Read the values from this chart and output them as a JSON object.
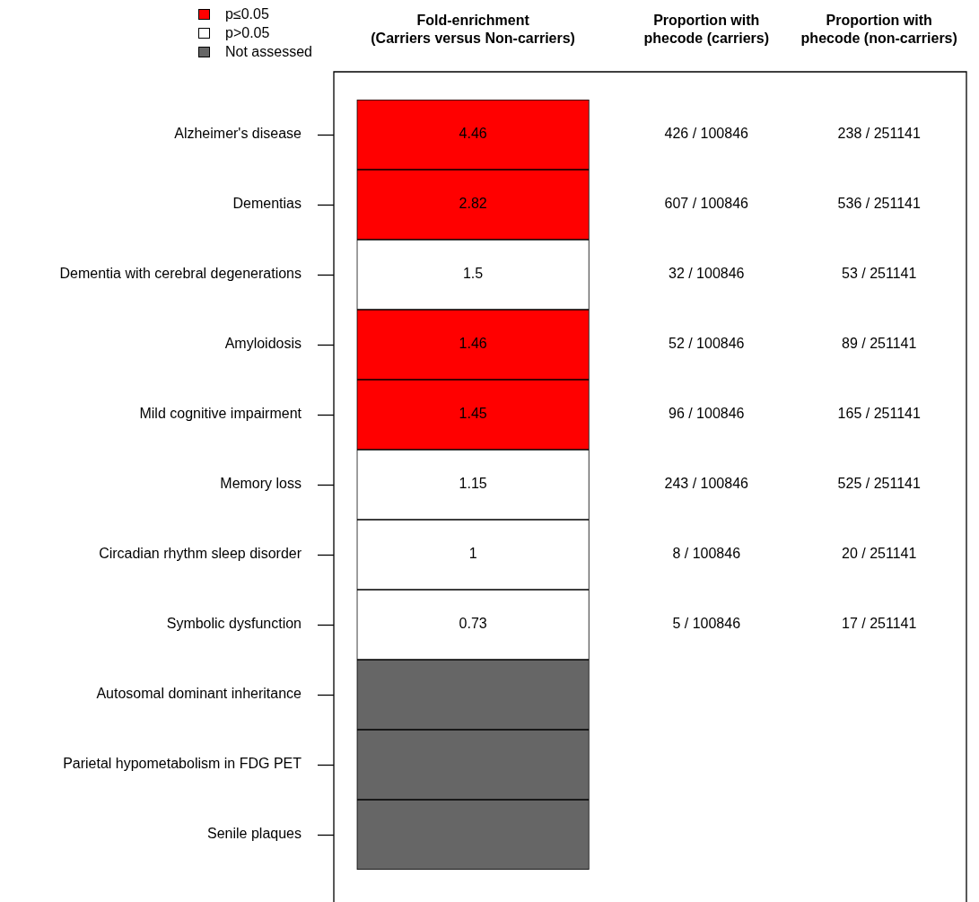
{
  "chart_data": {
    "type": "heatmap",
    "categories": [
      "Fold-enrichment\n(Carriers versus Non-carriers)",
      "Proportion with\nphecode (carriers)",
      "Proportion with\nphecode (non-carriers)"
    ],
    "y_categories": [
      "Alzheimer's disease",
      "Dementias",
      "Dementia with cerebral degenerations",
      "Amyloidosis",
      "Mild cognitive impairment",
      "Memory loss",
      "Circadian rhythm sleep disorder",
      "Symbolic dysfunction",
      "Autosomal dominant inheritance",
      "Parietal hypometabolism in FDG PET",
      "Senile plaques"
    ],
    "cells": [
      [
        4.46,
        null,
        null
      ],
      [
        2.82,
        null,
        null
      ],
      [
        1.5,
        null,
        null
      ],
      [
        1.46,
        null,
        null
      ],
      [
        1.45,
        null,
        null
      ],
      [
        1.15,
        null,
        null
      ],
      [
        1,
        null,
        null
      ],
      [
        0.73,
        null,
        null
      ],
      [
        null,
        null,
        null
      ],
      [
        null,
        null,
        null
      ],
      [
        null,
        null,
        null
      ]
    ],
    "cell_labels": [
      [
        "4.46",
        "426 / 100846",
        "238 / 251141"
      ],
      [
        "2.82",
        "607 / 100846",
        "536 / 251141"
      ],
      [
        "1.5",
        "32 / 100846",
        "53 / 251141"
      ],
      [
        "1.46",
        "52 / 100846",
        "89 / 251141"
      ],
      [
        "1.45",
        "96 / 100846",
        "165 / 251141"
      ],
      [
        "1.15",
        "243 / 100846",
        "525 / 251141"
      ],
      [
        "1",
        "8 / 100846",
        "20 / 251141"
      ],
      [
        "0.73",
        "5 / 100846",
        "17 / 251141"
      ],
      [
        null,
        null,
        null
      ],
      [
        null,
        null,
        null
      ],
      [
        null,
        null,
        null
      ]
    ],
    "colors": [
      "#ff0000",
      "#ff0000",
      "#ffffff",
      "#ff0000",
      "#ff0000",
      "#ffffff",
      "#ffffff",
      "#ffffff",
      "#666666",
      "#666666",
      "#666666"
    ],
    "annotations": [
      "p≤0.05",
      "p>0.05",
      "Not assessed"
    ]
  }
}
